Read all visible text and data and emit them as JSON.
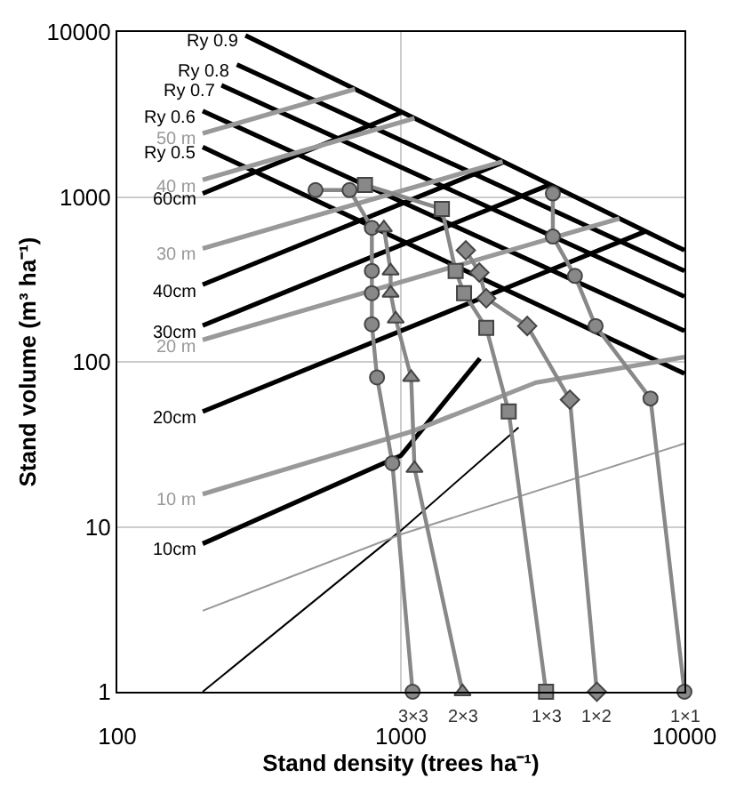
{
  "chart_data": {
    "type": "line",
    "xlabel": "Stand density (trees ha⁻¹)",
    "ylabel": "Stand volume (m³ ha⁻¹)",
    "log": "xy",
    "grid": true,
    "legend": false,
    "xlim": [
      100,
      10000
    ],
    "xticks": [
      100,
      1000,
      10000
    ],
    "ylim": [
      1,
      10000
    ],
    "yticks": [
      1,
      10,
      100,
      1000,
      10000
    ],
    "series": [
      {
        "name": "Ry 0.9",
        "color": "#000000",
        "x": [
          283,
          10000
        ],
        "values": [
          9530,
          475
        ]
      },
      {
        "name": "Ry 0.8",
        "color": "#000000",
        "x": [
          264,
          10000
        ],
        "values": [
          6340,
          356
        ]
      },
      {
        "name": "Ry 0.7",
        "color": "#000000",
        "x": [
          233,
          10000
        ],
        "values": [
          4750,
          249
        ]
      },
      {
        "name": "Ry 0.6",
        "color": "#000000",
        "x": [
          200,
          10000
        ],
        "values": [
          3320,
          154
        ]
      },
      {
        "name": "Ry 0.5",
        "color": "#000000",
        "x": [
          200,
          10000
        ],
        "values": [
          2005,
          85
        ]
      },
      {
        "name": "60cm",
        "color": "#000000",
        "x": [
          200,
          1012
        ],
        "values": [
          1050,
          3265
        ]
      },
      {
        "name": "40cm",
        "color": "#000000",
        "x": [
          200,
          2310
        ],
        "values": [
          294,
          1630
        ]
      },
      {
        "name": "30cm",
        "color": "#000000",
        "x": [
          200,
          3357
        ],
        "values": [
          166,
          1190
        ]
      },
      {
        "name": "20cm",
        "color": "#000000",
        "x": [
          200,
          7310
        ],
        "values": [
          50,
          620
        ]
      },
      {
        "name": "10cm",
        "color": "#000000",
        "x": [
          200,
          1000,
          1900
        ],
        "values": [
          7.9,
          27,
          105
        ]
      },
      {
        "name": "50 m",
        "color": "#999999",
        "x": [
          200,
          689
        ],
        "values": [
          2430,
          4510
        ]
      },
      {
        "name": "40 m",
        "color": "#999999",
        "x": [
          200,
          1117
        ],
        "values": [
          1270,
          3000
        ]
      },
      {
        "name": "30 m",
        "color": "#999999",
        "x": [
          200,
          2285
        ],
        "values": [
          487,
          1640
        ]
      },
      {
        "name": "20 m",
        "color": "#999999",
        "x": [
          200,
          5900
        ],
        "values": [
          136,
          741
        ]
      },
      {
        "name": "10 m",
        "color": "#999999",
        "x": [
          200,
          1100,
          3000,
          10000
        ],
        "values": [
          15.8,
          38,
          75,
          107
        ]
      },
      {
        "color": "#000000",
        "x": [
          200,
          1000,
          2600
        ],
        "values": [
          1,
          9.5,
          40
        ]
      },
      {
        "color": "#999999",
        "x": [
          200,
          1000,
          10000
        ],
        "values": [
          3.1,
          9,
          32
        ]
      },
      {
        "name": "3×3",
        "color": "#888888",
        "marker": "circle",
        "x": [
          1100,
          933,
          824,
          790,
          790,
          790,
          790,
          659,
          500
        ],
        "values": [
          1,
          24.3,
          80.5,
          169,
          261,
          356,
          650,
          1100,
          1100
        ]
      },
      {
        "name": "2×3",
        "color": "#888888",
        "marker": "triangle",
        "x": [
          1650,
          1117,
          1087,
          959,
          920,
          920,
          871
        ],
        "values": [
          1,
          22.6,
          80.5,
          182,
          261,
          356,
          650
        ]
      },
      {
        "name": "1×3",
        "color": "#888888",
        "marker": "square",
        "x": [
          3250,
          2400,
          2000,
          1670,
          1560,
          1395,
          747
        ],
        "values": [
          1,
          50,
          161,
          261,
          356,
          845,
          1183
        ]
      },
      {
        "name": "1×2",
        "color": "#888888",
        "marker": "diamond",
        "x": [
          4910,
          3945,
          2790,
          2000,
          1890,
          1694
        ],
        "values": [
          1,
          59,
          165,
          243,
          348,
          475
        ]
      },
      {
        "name": "1×1",
        "color": "#888888",
        "marker": "circle",
        "x": [
          10000,
          7590,
          4860,
          4110,
          3435,
          3435
        ],
        "values": [
          1,
          60,
          165,
          332,
          575,
          1050
        ]
      }
    ]
  }
}
